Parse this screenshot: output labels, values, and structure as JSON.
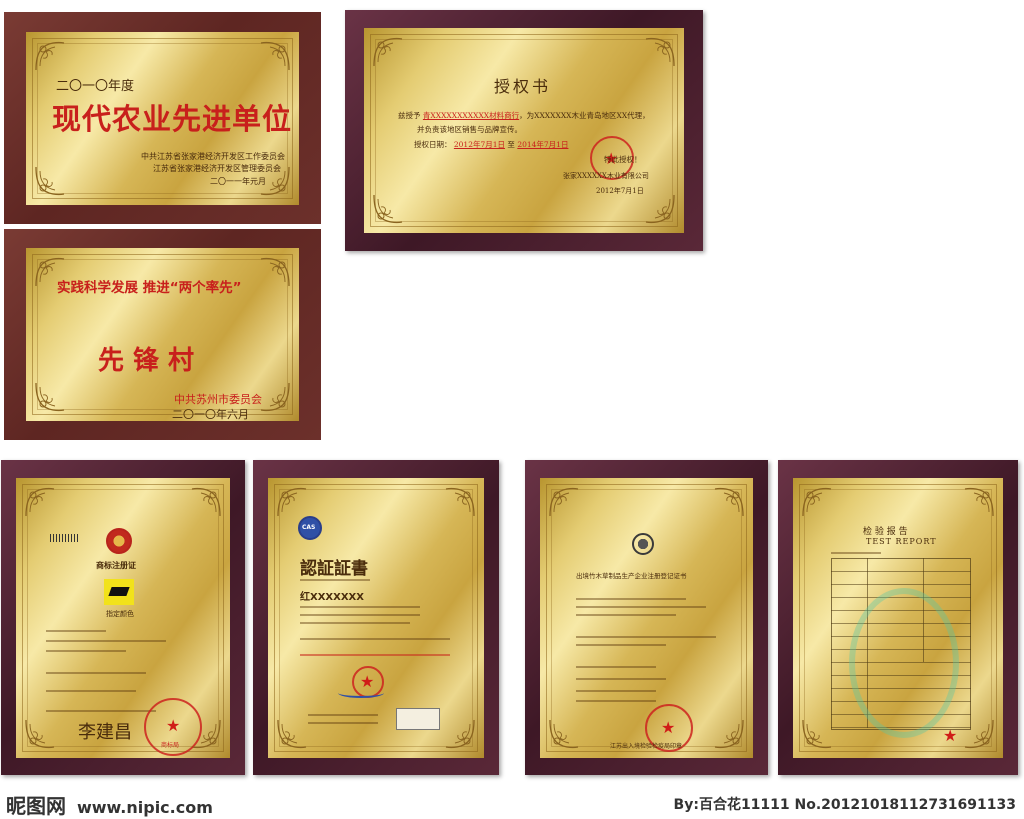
{
  "plaques": {
    "agri": {
      "year": "二〇一〇年度",
      "title": "现代农业先进单位",
      "org1": "中共江苏省张家港经济开发区工作委员会",
      "org2": "江苏省张家港经济开发区管理委员会",
      "date": "二〇一一年元月"
    },
    "auth": {
      "title": "授权书",
      "line1_prefix": "兹授予",
      "line1_company": "青XXXXXXXXXXX材料商行",
      "line1_suffix": "，为XXXXXXX木业青岛地区XX代理，",
      "line2": "并负责该地区销售与品牌宣传。",
      "period_label": "授权日期：",
      "start_date": "2012年7月1日",
      "to": "至",
      "end_date": "2014年7月1日",
      "note": "特此授权！",
      "company": "张家XXXXXX木业有限公司",
      "sign_date": "2012年7月1日"
    },
    "village": {
      "slogan": "实践科学发展 推进“两个率先”",
      "title": "先锋村",
      "org": "中共苏州市委员会",
      "date": "二〇一〇年六月"
    },
    "trademark": {
      "title": "商标注册证",
      "caption": "指定颜色",
      "signature": "李建昌",
      "seal": "商标局"
    },
    "iso": {
      "title": "認証証書",
      "code": "红XXXXXXX",
      "logo": "CAS"
    },
    "register": {
      "title": "出境竹木草制品生产企业注册登记证书",
      "footer": "江苏出入境检验检疫局印章"
    },
    "report": {
      "title_cn": "检 验 报 告",
      "title_en": "TEST REPORT"
    }
  },
  "watermarks": {
    "brand": "昵图网",
    "url": "www.nipic.com",
    "credit": "By:百合花11111  No.20121018112731691133"
  },
  "colors": {
    "frame_red": "#6a2e29",
    "frame_purple": "#4a1d2e",
    "gold": "#e3c86f",
    "ink_red": "#c8201c"
  }
}
